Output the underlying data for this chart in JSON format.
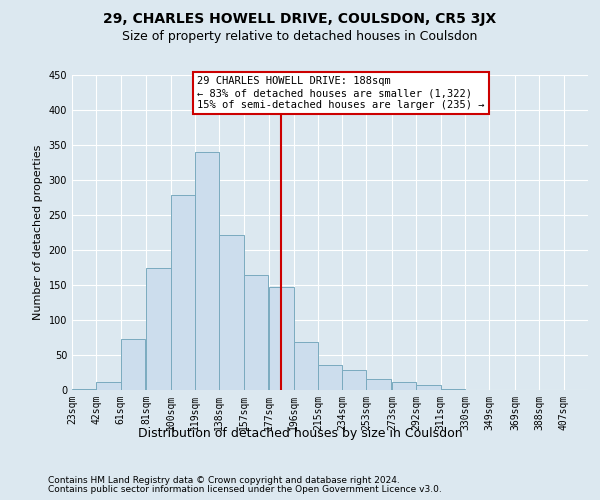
{
  "title": "29, CHARLES HOWELL DRIVE, COULSDON, CR5 3JX",
  "subtitle": "Size of property relative to detached houses in Coulsdon",
  "xlabel": "Distribution of detached houses by size in Coulsdon",
  "ylabel": "Number of detached properties",
  "bin_labels": [
    "23sqm",
    "42sqm",
    "61sqm",
    "81sqm",
    "100sqm",
    "119sqm",
    "138sqm",
    "157sqm",
    "177sqm",
    "196sqm",
    "215sqm",
    "234sqm",
    "253sqm",
    "273sqm",
    "292sqm",
    "311sqm",
    "330sqm",
    "349sqm",
    "369sqm",
    "388sqm",
    "407sqm"
  ],
  "bar_heights": [
    2,
    12,
    73,
    175,
    278,
    340,
    222,
    165,
    147,
    69,
    36,
    29,
    16,
    12,
    7,
    1,
    0,
    0,
    0,
    0
  ],
  "bar_color": "#ccdded",
  "bar_edgecolor": "#7aaabf",
  "vline_x": 177,
  "vline_color": "#cc0000",
  "annotation_text": "29 CHARLES HOWELL DRIVE: 188sqm\n← 83% of detached houses are smaller (1,322)\n15% of semi-detached houses are larger (235) →",
  "annotation_box_color": "#ffffff",
  "annotation_box_edgecolor": "#cc0000",
  "ylim": [
    0,
    450
  ],
  "yticks": [
    0,
    50,
    100,
    150,
    200,
    250,
    300,
    350,
    400,
    450
  ],
  "bin_edges": [
    23,
    42,
    61,
    81,
    100,
    119,
    138,
    157,
    177,
    196,
    215,
    234,
    253,
    273,
    292,
    311,
    330,
    349,
    369,
    388,
    407
  ],
  "footer_line1": "Contains HM Land Registry data © Crown copyright and database right 2024.",
  "footer_line2": "Contains public sector information licensed under the Open Government Licence v3.0.",
  "background_color": "#dce8f0",
  "title_fontsize": 10,
  "subtitle_fontsize": 9,
  "annotation_fontsize": 7.5,
  "ylabel_fontsize": 8,
  "xlabel_fontsize": 9,
  "tick_fontsize": 7,
  "footer_fontsize": 6.5
}
